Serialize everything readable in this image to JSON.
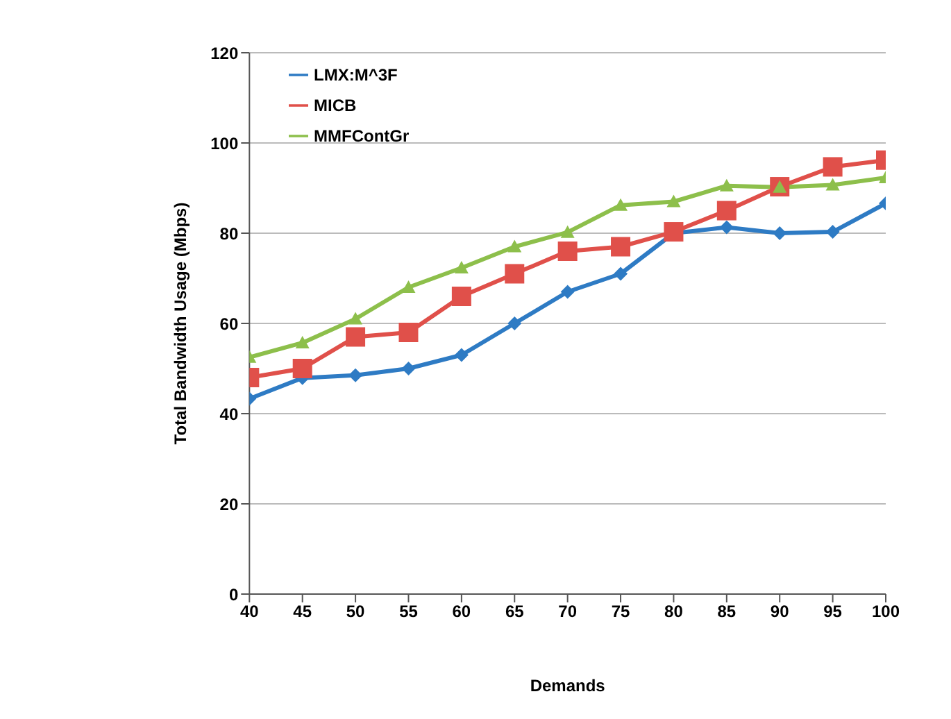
{
  "chart_data": {
    "type": "line",
    "xlabel": "Demands",
    "ylabel": "Total Bandwidth Usage (Mbps)",
    "x": [
      40,
      45,
      50,
      55,
      60,
      65,
      70,
      75,
      80,
      85,
      90,
      95,
      100
    ],
    "xlim": [
      40,
      100
    ],
    "xticks": [
      40,
      45,
      50,
      55,
      60,
      65,
      70,
      75,
      80,
      85,
      90,
      95,
      100
    ],
    "ylim": [
      0,
      120
    ],
    "yticks": [
      0,
      20,
      40,
      60,
      80,
      100,
      120
    ],
    "grid": "y",
    "legend": "top left",
    "series": [
      {
        "name": "LMX:M^3F",
        "color": "#2e7bc4",
        "marker": "diamond",
        "values": [
          43.3,
          47.9,
          48.5,
          50,
          53,
          60,
          67,
          71,
          80,
          81.3,
          80,
          80.3,
          86.6
        ]
      },
      {
        "name": "MICB",
        "color": "#e0504a",
        "marker": "square",
        "values": [
          48,
          50,
          57,
          58,
          66,
          71,
          76,
          77,
          80.3,
          85,
          90.3,
          94.7,
          96.2
        ]
      },
      {
        "name": "MMFContGr",
        "color": "#8dbf4b",
        "marker": "triangle",
        "values": [
          52.5,
          55.7,
          61,
          68,
          72.3,
          77,
          80.2,
          86.2,
          87,
          90.5,
          90.2,
          90.7,
          92.3
        ]
      }
    ]
  }
}
